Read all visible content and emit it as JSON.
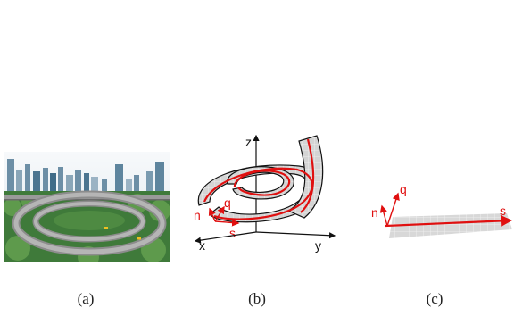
{
  "captions": {
    "a": "(a)",
    "b": "(b)",
    "c": "(c)"
  },
  "panel_b": {
    "axis_z": "z",
    "axis_x": "x",
    "axis_y": "y",
    "frame_n": "n",
    "frame_q": "q",
    "frame_s": "s"
  },
  "panel_c": {
    "frame_n": "n",
    "frame_q": "q",
    "frame_s": "s"
  },
  "colors": {
    "frame": "#e01010",
    "strip": "#d0d0d0",
    "axis": "#111111"
  }
}
